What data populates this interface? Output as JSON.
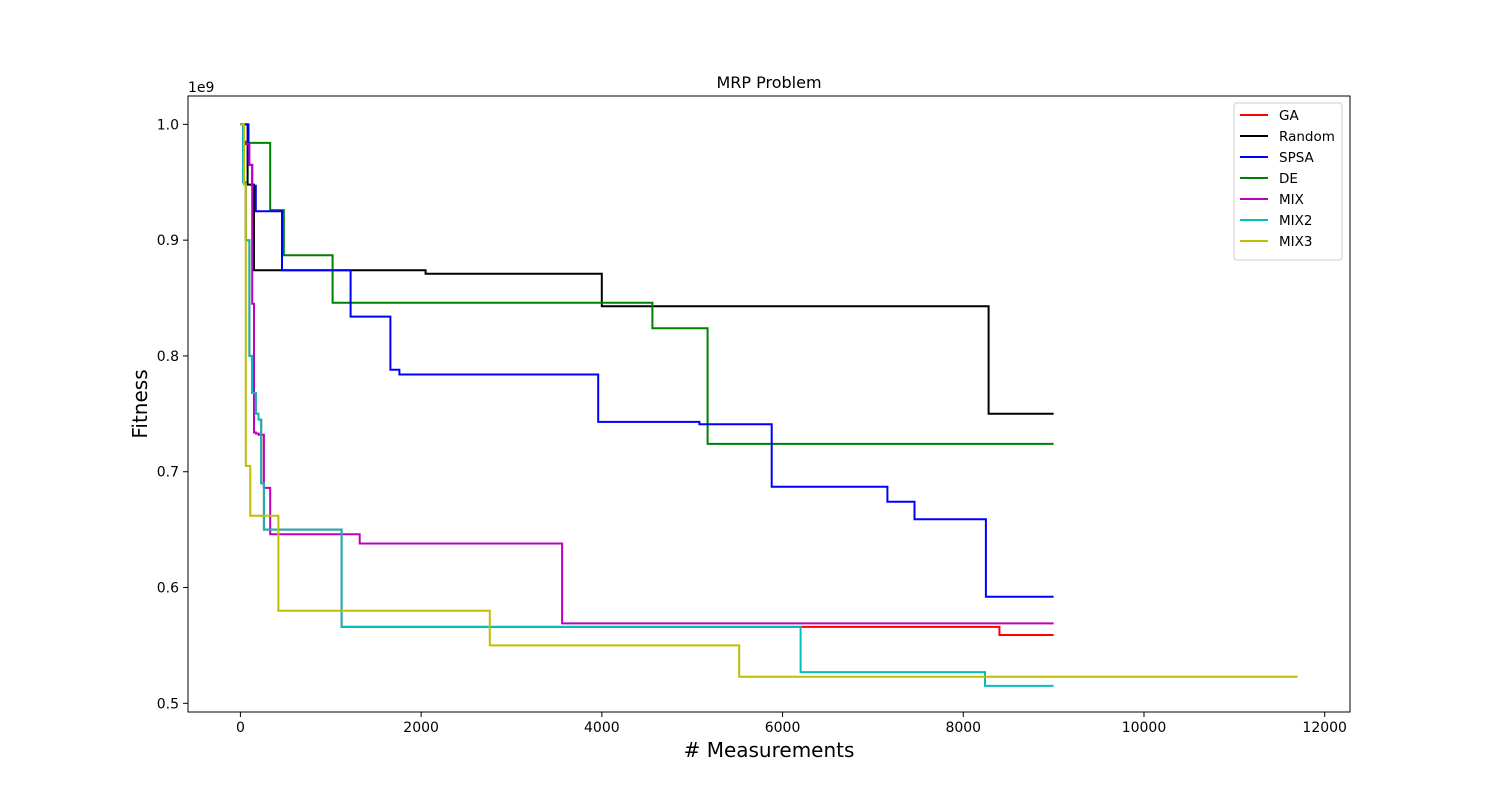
{
  "chart_data": {
    "type": "line",
    "drawstyle": "steps-post",
    "title": "MRP Problem",
    "xlabel": "# Measurements",
    "ylabel": "Fitness",
    "y_offset_text": "1e9",
    "y_scale_factor": 1000000000,
    "xlim": [
      -580,
      12280
    ],
    "ylim": [
      0.4925,
      1.0245
    ],
    "xticks": [
      0,
      2000,
      4000,
      6000,
      8000,
      10000,
      12000
    ],
    "xtick_labels": [
      "0",
      "2000",
      "4000",
      "6000",
      "8000",
      "10000",
      "12000"
    ],
    "yticks": [
      0.5,
      0.6,
      0.7,
      0.8,
      0.9,
      1.0
    ],
    "ytick_labels": [
      "0.5",
      "0.6",
      "0.7",
      "0.8",
      "0.9",
      "1.0"
    ],
    "grid": false,
    "legend_position": "upper right",
    "series": [
      {
        "name": "Random",
        "color": "#000000",
        "x": [
          0,
          80,
          150,
          2050,
          4000,
          8280,
          9000
        ],
        "y": [
          1.0,
          0.948,
          0.874,
          0.871,
          0.843,
          0.75,
          0.75
        ]
      },
      {
        "name": "DE",
        "color": "#008000",
        "x": [
          0,
          30,
          330,
          480,
          1020,
          4560,
          5170,
          9000
        ],
        "y": [
          1.0,
          0.984,
          0.926,
          0.887,
          0.846,
          0.824,
          0.724,
          0.724
        ]
      },
      {
        "name": "SPSA",
        "color": "#0000ff",
        "x": [
          0,
          90,
          130,
          170,
          460,
          1220,
          1660,
          1760,
          3960,
          5080,
          5880,
          7160,
          7460,
          8250,
          9000
        ],
        "y": [
          1.0,
          0.965,
          0.947,
          0.925,
          0.874,
          0.834,
          0.788,
          0.784,
          0.743,
          0.741,
          0.687,
          0.674,
          0.659,
          0.592,
          0.592
        ]
      },
      {
        "name": "GA",
        "color": "#ff0000",
        "x": [
          0,
          30,
          60,
          100,
          130,
          150,
          170,
          200,
          230,
          260,
          300,
          1120,
          6200,
          8400,
          9000
        ],
        "y": [
          1.0,
          0.95,
          0.9,
          0.8,
          0.768,
          0.768,
          0.75,
          0.745,
          0.69,
          0.65,
          0.65,
          0.566,
          0.566,
          0.559,
          0.559
        ]
      },
      {
        "name": "MIX",
        "color": "#bf00bf",
        "x": [
          0,
          30,
          60,
          100,
          130,
          150,
          170,
          200,
          230,
          260,
          290,
          330,
          1320,
          3560,
          9000
        ],
        "y": [
          1.0,
          0.985,
          0.983,
          0.965,
          0.845,
          0.734,
          0.733,
          0.732,
          0.732,
          0.686,
          0.686,
          0.646,
          0.638,
          0.569,
          0.569
        ]
      },
      {
        "name": "MIX2",
        "color": "#00bfbf",
        "x": [
          0,
          30,
          60,
          100,
          130,
          150,
          170,
          200,
          230,
          260,
          300,
          1120,
          6200,
          8240,
          9000
        ],
        "y": [
          1.0,
          0.95,
          0.9,
          0.8,
          0.768,
          0.768,
          0.75,
          0.745,
          0.69,
          0.65,
          0.65,
          0.566,
          0.527,
          0.515,
          0.515
        ]
      },
      {
        "name": "MIX3",
        "color": "#bfbf00",
        "x": [
          0,
          40,
          60,
          110,
          420,
          2760,
          5520,
          11700
        ],
        "y": [
          1.0,
          0.948,
          0.705,
          0.662,
          0.58,
          0.55,
          0.523,
          0.523
        ]
      }
    ],
    "legend_order": [
      "GA",
      "Random",
      "SPSA",
      "DE",
      "MIX",
      "MIX2",
      "MIX3"
    ]
  }
}
